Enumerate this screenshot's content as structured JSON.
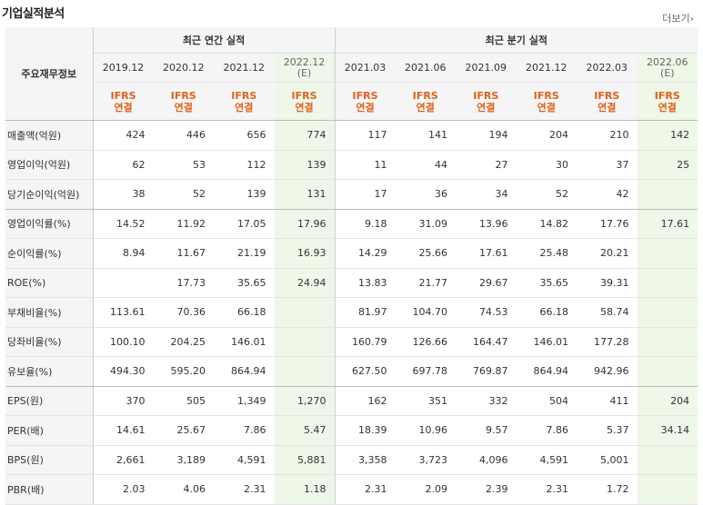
{
  "header": {
    "title": "기업실적분석",
    "more_label": "더보기"
  },
  "table": {
    "row_header_label": "주요재무정보",
    "group_annual": "최근 연간 실적",
    "group_quarter": "최근 분기 실적",
    "periods": [
      {
        "label": "2019.12",
        "est": "",
        "estimate": false
      },
      {
        "label": "2020.12",
        "est": "",
        "estimate": false
      },
      {
        "label": "2021.12",
        "est": "",
        "estimate": false
      },
      {
        "label": "2022.12",
        "est": "(E)",
        "estimate": true
      },
      {
        "label": "2021.03",
        "est": "",
        "estimate": false
      },
      {
        "label": "2021.06",
        "est": "",
        "estimate": false
      },
      {
        "label": "2021.09",
        "est": "",
        "estimate": false
      },
      {
        "label": "2021.12",
        "est": "",
        "estimate": false
      },
      {
        "label": "2022.03",
        "est": "",
        "estimate": false
      },
      {
        "label": "2022.06",
        "est": "(E)",
        "estimate": true
      }
    ],
    "basis_line1": "IFRS",
    "basis_line2": "연결",
    "rows": [
      {
        "label": "매출액(억원)",
        "values": [
          "424",
          "446",
          "656",
          "774",
          "117",
          "141",
          "194",
          "204",
          "210",
          "142"
        ]
      },
      {
        "label": "영업이익(억원)",
        "values": [
          "62",
          "53",
          "112",
          "139",
          "11",
          "44",
          "27",
          "30",
          "37",
          "25"
        ]
      },
      {
        "label": "당기순이익(억원)",
        "values": [
          "38",
          "52",
          "139",
          "131",
          "17",
          "36",
          "34",
          "52",
          "42",
          ""
        ]
      },
      {
        "label": "영업이익률(%)",
        "values": [
          "14.52",
          "11.92",
          "17.05",
          "17.96",
          "9.18",
          "31.09",
          "13.96",
          "14.82",
          "17.76",
          "17.61"
        ]
      },
      {
        "label": "순이익률(%)",
        "values": [
          "8.94",
          "11.67",
          "21.19",
          "16.93",
          "14.29",
          "25.66",
          "17.61",
          "25.48",
          "20.21",
          ""
        ]
      },
      {
        "label": "ROE(%)",
        "values": [
          "",
          "17.73",
          "35.65",
          "24.94",
          "13.83",
          "21.77",
          "29.67",
          "35.65",
          "39.31",
          ""
        ]
      },
      {
        "label": "부채비율(%)",
        "values": [
          "113.61",
          "70.36",
          "66.18",
          "",
          "81.97",
          "104.70",
          "74.53",
          "66.18",
          "58.74",
          ""
        ]
      },
      {
        "label": "당좌비율(%)",
        "values": [
          "100.10",
          "204.25",
          "146.01",
          "",
          "160.79",
          "126.66",
          "164.47",
          "146.01",
          "177.28",
          ""
        ]
      },
      {
        "label": "유보율(%)",
        "values": [
          "494.30",
          "595.20",
          "864.94",
          "",
          "627.50",
          "697.78",
          "769.87",
          "864.94",
          "942.96",
          ""
        ]
      },
      {
        "label": "EPS(원)",
        "values": [
          "370",
          "505",
          "1,349",
          "1,270",
          "162",
          "351",
          "332",
          "504",
          "411",
          "204"
        ]
      },
      {
        "label": "PER(배)",
        "values": [
          "14.61",
          "25.67",
          "7.86",
          "5.47",
          "18.39",
          "10.96",
          "9.57",
          "7.86",
          "5.37",
          "34.14"
        ]
      },
      {
        "label": "BPS(원)",
        "values": [
          "2,661",
          "3,189",
          "4,591",
          "5,881",
          "3,358",
          "3,723",
          "4,096",
          "4,591",
          "5,001",
          ""
        ]
      },
      {
        "label": "PBR(배)",
        "values": [
          "2.03",
          "4.06",
          "2.31",
          "1.18",
          "2.31",
          "2.09",
          "2.39",
          "2.31",
          "1.72",
          ""
        ]
      }
    ]
  }
}
